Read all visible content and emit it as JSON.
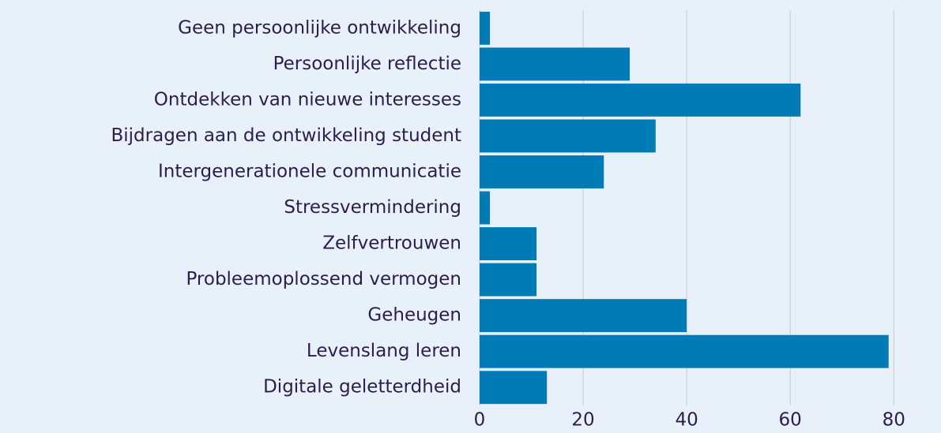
{
  "chart_data": {
    "type": "hbar",
    "categories": [
      "Geen persoonlijke ontwikkeling",
      "Persoonlijke reflectie",
      "Ontdekken van nieuwe interesses",
      "Bijdragen aan de ontwikkeling student",
      "Intergenerationele communicatie",
      "Stressvermindering",
      "Zelfvertrouwen",
      "Probleemoplossend vermogen",
      "Geheugen",
      "Levenslang leren",
      "Digitale geletterdheid"
    ],
    "values": [
      2,
      29,
      62,
      34,
      24,
      2,
      11,
      11,
      40,
      79,
      13
    ],
    "color": "#007bb6",
    "xlim": [
      0,
      85
    ],
    "xticks": [
      0,
      20,
      40,
      60,
      80
    ],
    "grid": true
  }
}
